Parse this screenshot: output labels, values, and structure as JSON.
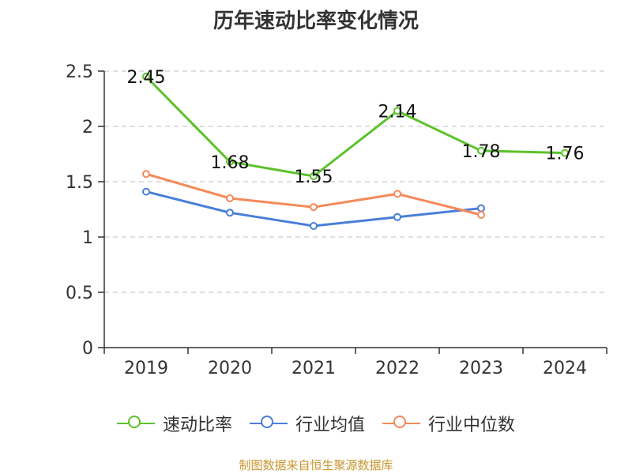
{
  "title": "历年速动比率变化情况",
  "source": "制图数据来自恒生聚源数据库",
  "chart_data": {
    "type": "line",
    "categories": [
      "2019",
      "2020",
      "2021",
      "2022",
      "2023",
      "2024"
    ],
    "ylim": [
      0,
      2.5
    ],
    "yticks": [
      "0",
      "0.5",
      "1",
      "1.5",
      "2",
      "2.5"
    ],
    "ytick_values": [
      0,
      0.5,
      1,
      1.5,
      2,
      2.5
    ],
    "grid": true,
    "legend_position": "bottom",
    "series": [
      {
        "name": "速动比率",
        "color": "#5cc22b",
        "values": [
          2.45,
          1.68,
          1.55,
          2.14,
          1.78,
          1.76
        ],
        "labels": [
          "2.45",
          "1.68",
          "1.55",
          "2.14",
          "1.78",
          "1.76"
        ]
      },
      {
        "name": "行业均值",
        "color": "#4a7fd8",
        "values": [
          1.41,
          1.22,
          1.1,
          1.18,
          1.26,
          null
        ]
      },
      {
        "name": "行业中位数",
        "color": "#f5895a",
        "values": [
          1.57,
          1.35,
          1.27,
          1.39,
          1.2,
          null
        ]
      }
    ]
  }
}
